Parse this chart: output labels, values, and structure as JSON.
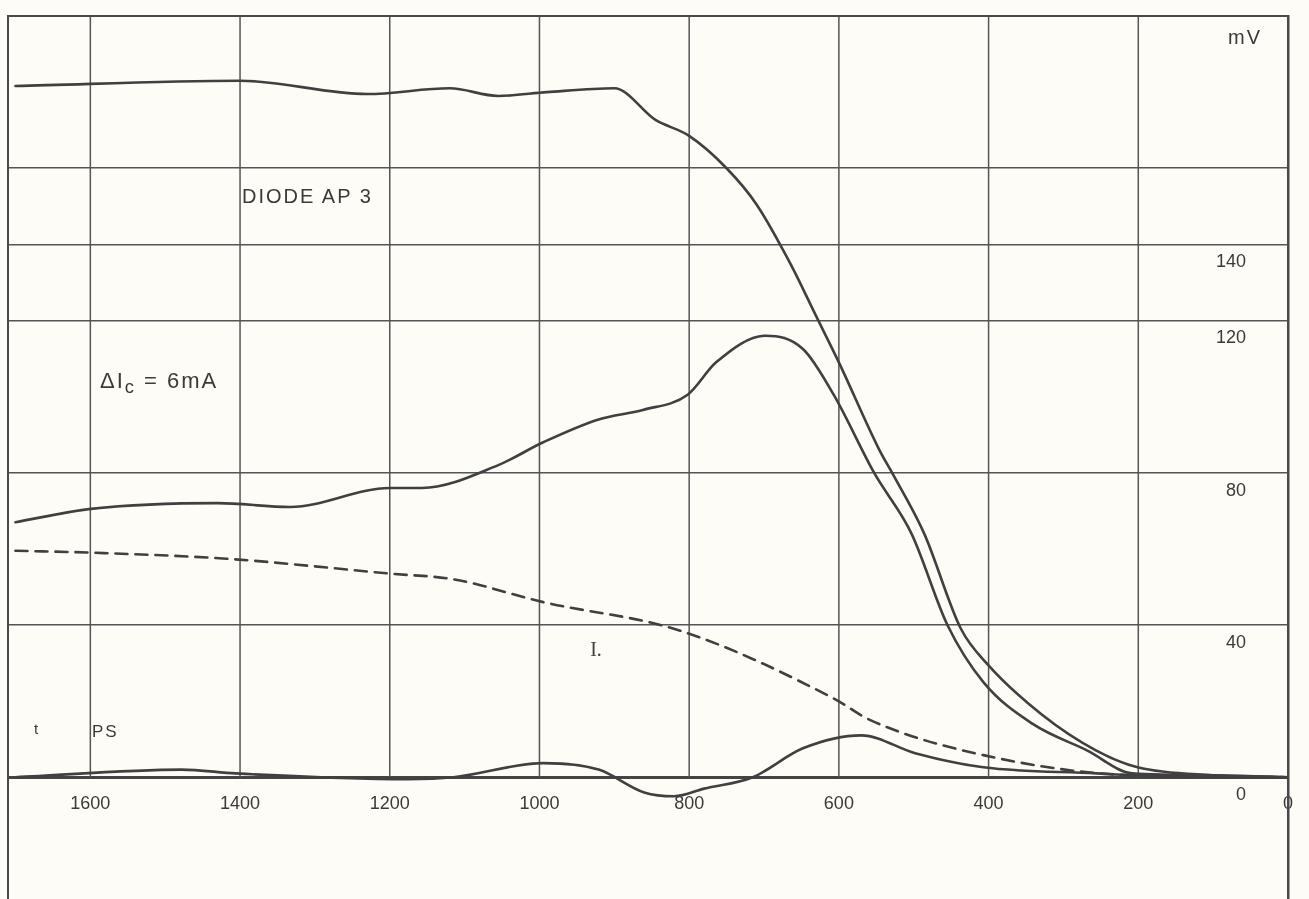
{
  "chart_data": {
    "type": "line",
    "title": "DIODE AP 3",
    "xlabel": "PS",
    "ylabel": "mV",
    "annotations": [
      "ΔI$_{c}$ = 6mA",
      "t"
    ],
    "xlim": [
      1710,
      0
    ],
    "xticks": [
      1600,
      1400,
      1200,
      1000,
      800,
      600,
      400,
      200,
      0
    ],
    "ylim": [
      -32,
      200
    ],
    "yticks": [
      0,
      40,
      80,
      120,
      140,
      {
        "value": 160,
        "label": null
      }
    ],
    "grid": true,
    "legend": false,
    "marker": "none",
    "series": [
      {
        "color": "#404040",
        "line_style": "solid",
        "x": [
          1700,
          1400,
          1230,
          1120,
          1055,
          990,
          900,
          845,
          800,
          750,
          710,
          665,
          630,
          600,
          546,
          529,
          486,
          437,
          401,
          329,
          256,
          201,
          100,
          0
        ],
        "values": [
          181.6,
          183,
          179.5,
          181,
          179,
          180,
          181,
          172.7,
          168.5,
          160,
          150.5,
          135,
          121,
          109,
          86,
          80,
          64,
          39,
          29.6,
          16.5,
          7,
          2.6,
          0.5,
          0
        ]
      },
      {
        "color": "#404040",
        "line_style": "solid",
        "x": [
          1700,
          1599,
          1430,
          1333,
          1200,
          1157,
          1055,
          995,
          921,
          862,
          802,
          764,
          698,
          648,
          607,
          553,
          503,
          455,
          407,
          341,
          268,
          208,
          100,
          0
        ],
        "values": [
          67,
          70.5,
          72,
          71,
          76,
          76,
          82,
          88,
          94,
          96.5,
          100.5,
          109,
          116,
          112.5,
          100.5,
          80,
          64,
          40,
          25,
          14,
          7,
          1,
          0.5,
          0
        ]
      },
      {
        "name": "I.",
        "color": "#404040",
        "line_style": "dashed",
        "x": [
          1700,
          1599,
          1418,
          1200,
          1115,
          995,
          812,
          607,
          558,
          407,
          208,
          0
        ],
        "values": [
          59.5,
          59,
          57.4,
          53.5,
          52,
          46,
          38.5,
          20.7,
          15,
          5.8,
          0.5,
          0
        ]
      },
      {
        "color": "#404040",
        "line_style": "solid",
        "x": [
          1700,
          1478,
          1406,
          1176,
          1115,
          995,
          921,
          860,
          820,
          780,
          715,
          648,
          570,
          498,
          407,
          256,
          208,
          0
        ],
        "values": [
          0,
          2,
          1,
          -0.5,
          0,
          3.7,
          2,
          -4,
          -5,
          -3,
          0,
          7.6,
          11,
          6.3,
          2.6,
          1,
          0.5,
          0
        ]
      }
    ]
  }
}
